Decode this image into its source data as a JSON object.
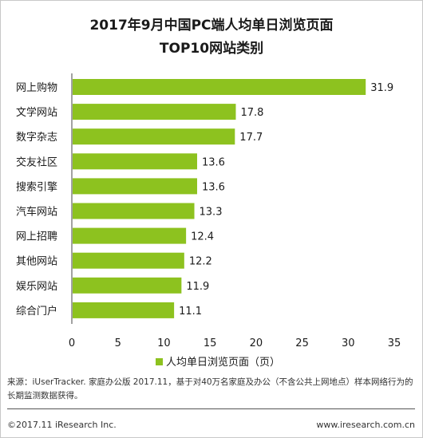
{
  "header": {
    "title_line1": "2017年9月中国PC端人均单日浏览页面",
    "title_line2": "TOP10网站类别"
  },
  "chart_data": {
    "type": "bar",
    "orientation": "horizontal",
    "categories": [
      "网上购物",
      "文学网站",
      "数字杂志",
      "交友社区",
      "搜索引擎",
      "汽车网站",
      "网上招聘",
      "其他网站",
      "娱乐网站",
      "综合门户"
    ],
    "series": [
      {
        "name": "人均单日浏览页面（页）",
        "values": [
          31.9,
          17.8,
          17.7,
          13.6,
          13.6,
          13.3,
          12.4,
          12.2,
          11.9,
          11.1
        ]
      }
    ],
    "value_labels": [
      "31.9",
      "17.8",
      "17.7",
      "13.6",
      "13.6",
      "13.3",
      "12.4",
      "12.2",
      "11.9",
      "11.1"
    ],
    "xlim": [
      0,
      35
    ],
    "xticks": [
      "0",
      "5",
      "10",
      "15",
      "20",
      "25",
      "30",
      "35"
    ],
    "xtick_values": [
      0,
      5,
      10,
      15,
      20,
      25,
      30,
      35
    ],
    "grid": false,
    "legend": "bottom-center",
    "bar_color": "#8dc21f"
  },
  "footer": {
    "source_text": "来源：iUserTracker. 家庭办公版 2017.11，基于对40万名家庭及办公（不含公共上网地点）样本网络行为的长期监测数据获得。",
    "copyright": "©2017.11 iResearch Inc.",
    "website": "www.iresearch.com.cn"
  }
}
